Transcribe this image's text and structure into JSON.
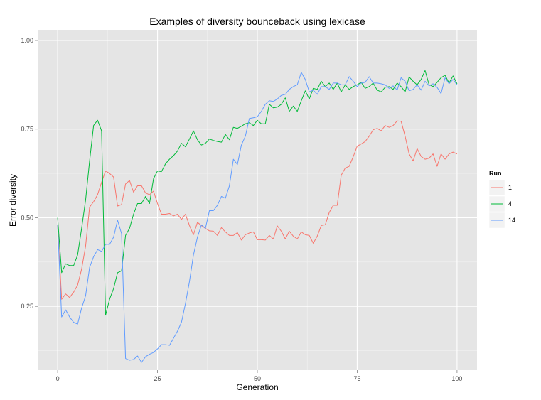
{
  "chart_data": {
    "type": "line",
    "title": "Examples of diversity bounceback using lexicase",
    "xlabel": "Generation",
    "ylabel": "Error diversity",
    "xlim": [
      -5,
      105
    ],
    "ylim": [
      0.07,
      1.03
    ],
    "xticks": [
      0,
      25,
      50,
      75,
      100
    ],
    "xtick_labels": [
      "0",
      "25",
      "50",
      "75",
      "100"
    ],
    "yticks": [
      0.25,
      0.5,
      0.75,
      1.0
    ],
    "ytick_labels": [
      "0.25",
      "0.50",
      "0.75",
      "1.00"
    ],
    "grid": true,
    "legend": {
      "title": "Run",
      "position": "right"
    },
    "series": [
      {
        "name": "1",
        "color": "#F8766D",
        "x": [
          0,
          1,
          2,
          3,
          4,
          5,
          6,
          7,
          8,
          9,
          10,
          11,
          12,
          13,
          14,
          15,
          16,
          17,
          18,
          19,
          20,
          21,
          22,
          23,
          24,
          25,
          26,
          27,
          28,
          29,
          30,
          31,
          32,
          33,
          34,
          35,
          36,
          37,
          38,
          39,
          40,
          41,
          42,
          43,
          44,
          45,
          46,
          47,
          48,
          49,
          50,
          51,
          52,
          53,
          54,
          55,
          56,
          57,
          58,
          59,
          60,
          61,
          62,
          63,
          64,
          65,
          66,
          67,
          68,
          69,
          70,
          71,
          72,
          73,
          74,
          75,
          76,
          77,
          78,
          79,
          80,
          81,
          82,
          83,
          84,
          85,
          86,
          87,
          88,
          89,
          90,
          91,
          92,
          93,
          94,
          95,
          96,
          97,
          98,
          99,
          100
        ],
        "values": [
          0.48,
          0.27,
          0.285,
          0.275,
          0.29,
          0.31,
          0.355,
          0.42,
          0.53,
          0.545,
          0.565,
          0.6,
          0.632,
          0.625,
          0.615,
          0.533,
          0.537,
          0.595,
          0.605,
          0.572,
          0.59,
          0.59,
          0.57,
          0.565,
          0.575,
          0.54,
          0.51,
          0.51,
          0.512,
          0.505,
          0.51,
          0.495,
          0.51,
          0.478,
          0.452,
          0.487,
          0.478,
          0.47,
          0.463,
          0.462,
          0.45,
          0.472,
          0.46,
          0.45,
          0.45,
          0.458,
          0.437,
          0.452,
          0.457,
          0.46,
          0.438,
          0.438,
          0.437,
          0.45,
          0.44,
          0.477,
          0.462,
          0.44,
          0.462,
          0.448,
          0.44,
          0.46,
          0.452,
          0.45,
          0.428,
          0.448,
          0.478,
          0.48,
          0.515,
          0.535,
          0.535,
          0.62,
          0.64,
          0.645,
          0.672,
          0.702,
          0.708,
          0.715,
          0.73,
          0.748,
          0.752,
          0.745,
          0.76,
          0.755,
          0.76,
          0.773,
          0.772,
          0.73,
          0.68,
          0.66,
          0.695,
          0.673,
          0.665,
          0.668,
          0.68,
          0.645,
          0.68,
          0.665,
          0.68,
          0.685,
          0.68
        ]
      },
      {
        "name": "4",
        "color": "#00BA38",
        "x": [
          0,
          1,
          2,
          3,
          4,
          5,
          6,
          7,
          8,
          9,
          10,
          11,
          12,
          13,
          14,
          15,
          16,
          17,
          18,
          19,
          20,
          21,
          22,
          23,
          24,
          25,
          26,
          27,
          28,
          29,
          30,
          31,
          32,
          33,
          34,
          35,
          36,
          37,
          38,
          39,
          40,
          41,
          42,
          43,
          44,
          45,
          46,
          47,
          48,
          49,
          50,
          51,
          52,
          53,
          54,
          55,
          56,
          57,
          58,
          59,
          60,
          61,
          62,
          63,
          64,
          65,
          66,
          67,
          68,
          69,
          70,
          71,
          72,
          73,
          74,
          75,
          76,
          77,
          78,
          79,
          80,
          81,
          82,
          83,
          84,
          85,
          86,
          87,
          88,
          89,
          90,
          91,
          92,
          93,
          94,
          95,
          96,
          97,
          98,
          99,
          100
        ],
        "values": [
          0.5,
          0.345,
          0.37,
          0.365,
          0.365,
          0.395,
          0.47,
          0.55,
          0.66,
          0.76,
          0.775,
          0.745,
          0.225,
          0.27,
          0.3,
          0.345,
          0.35,
          0.45,
          0.47,
          0.51,
          0.54,
          0.54,
          0.56,
          0.54,
          0.61,
          0.632,
          0.63,
          0.652,
          0.665,
          0.675,
          0.688,
          0.71,
          0.7,
          0.722,
          0.745,
          0.72,
          0.705,
          0.71,
          0.722,
          0.718,
          0.715,
          0.713,
          0.735,
          0.72,
          0.755,
          0.752,
          0.758,
          0.765,
          0.768,
          0.76,
          0.775,
          0.765,
          0.765,
          0.82,
          0.81,
          0.812,
          0.82,
          0.838,
          0.8,
          0.815,
          0.8,
          0.83,
          0.858,
          0.835,
          0.865,
          0.862,
          0.885,
          0.87,
          0.88,
          0.862,
          0.88,
          0.855,
          0.875,
          0.862,
          0.87,
          0.875,
          0.882,
          0.865,
          0.87,
          0.88,
          0.86,
          0.855,
          0.868,
          0.87,
          0.862,
          0.88,
          0.87,
          0.855,
          0.897,
          0.885,
          0.875,
          0.89,
          0.915,
          0.875,
          0.87,
          0.882,
          0.895,
          0.902,
          0.88,
          0.9,
          0.878
        ]
      },
      {
        "name": "14",
        "color": "#619CFF",
        "x": [
          0,
          1,
          2,
          3,
          4,
          5,
          6,
          7,
          8,
          9,
          10,
          11,
          12,
          13,
          14,
          15,
          16,
          17,
          18,
          19,
          20,
          21,
          22,
          23,
          24,
          25,
          26,
          27,
          28,
          29,
          30,
          31,
          32,
          33,
          34,
          35,
          36,
          37,
          38,
          39,
          40,
          41,
          42,
          43,
          44,
          45,
          46,
          47,
          48,
          49,
          50,
          51,
          52,
          53,
          54,
          55,
          56,
          57,
          58,
          59,
          60,
          61,
          62,
          63,
          64,
          65,
          66,
          67,
          68,
          69,
          70,
          71,
          72,
          73,
          74,
          75,
          76,
          77,
          78,
          79,
          80,
          81,
          82,
          83,
          84,
          85,
          86,
          87,
          88,
          89,
          90,
          91,
          92,
          93,
          94,
          95,
          96,
          97,
          98,
          99,
          100
        ],
        "values": [
          0.48,
          0.22,
          0.24,
          0.22,
          0.205,
          0.2,
          0.245,
          0.28,
          0.36,
          0.39,
          0.41,
          0.405,
          0.425,
          0.425,
          0.445,
          0.493,
          0.455,
          0.103,
          0.098,
          0.1,
          0.11,
          0.092,
          0.108,
          0.115,
          0.12,
          0.13,
          0.142,
          0.142,
          0.14,
          0.16,
          0.18,
          0.205,
          0.258,
          0.32,
          0.395,
          0.445,
          0.48,
          0.47,
          0.52,
          0.52,
          0.535,
          0.56,
          0.555,
          0.59,
          0.665,
          0.65,
          0.705,
          0.73,
          0.78,
          0.782,
          0.785,
          0.8,
          0.82,
          0.83,
          0.828,
          0.835,
          0.845,
          0.848,
          0.862,
          0.87,
          0.875,
          0.91,
          0.89,
          0.855,
          0.86,
          0.848,
          0.87,
          0.87,
          0.862,
          0.88,
          0.88,
          0.875,
          0.875,
          0.898,
          0.885,
          0.87,
          0.88,
          0.882,
          0.898,
          0.88,
          0.88,
          0.878,
          0.875,
          0.865,
          0.872,
          0.86,
          0.895,
          0.885,
          0.858,
          0.862,
          0.875,
          0.86,
          0.885,
          0.872,
          0.878,
          0.868,
          0.85,
          0.895,
          0.878,
          0.89,
          0.875
        ]
      }
    ]
  }
}
